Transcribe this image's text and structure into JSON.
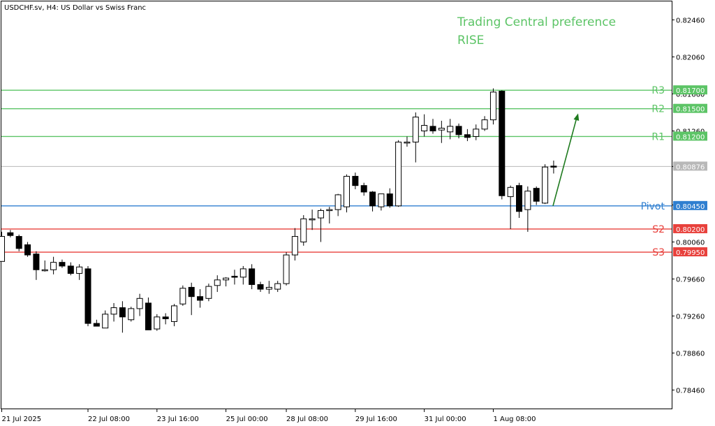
{
  "chart_title": "USDCHF.sv, H4:  US Dollar vs Swiss Franc",
  "preference": {
    "line1": "Trading Central preference",
    "line2": "RISE",
    "color": "#5cc466"
  },
  "colors": {
    "resistance": "#5cc466",
    "support": "#e8413c",
    "pivot": "#2f7fd0",
    "current": "#b8b8b8",
    "arrow": "#1e7a1e",
    "up_candle": "#ffffff",
    "down_candle": "#000000"
  },
  "chart_data": {
    "type": "candlestick",
    "ylim": [
      0.7826,
      0.8266
    ],
    "y_ticks": [
      "0.82460",
      "0.82060",
      "0.81660",
      "0.81260",
      "0.80876",
      "0.80460",
      "0.80060",
      "0.79660",
      "0.79260",
      "0.78860",
      "0.78460"
    ],
    "x_labels": [
      "21 Jul 2025",
      "22 Jul 08:00",
      "23 Jul 16:00",
      "25 Jul 00:00",
      "28 Jul 08:00",
      "29 Jul 16:00",
      "31 Jul 00:00",
      "1 Aug 08:00"
    ],
    "x_label_bars": [
      0,
      10,
      18,
      26,
      33,
      41,
      49,
      57
    ],
    "levels": [
      {
        "name": "R3",
        "value": 0.817,
        "label": "0.81700",
        "kind": "resistance"
      },
      {
        "name": "R2",
        "value": 0.815,
        "label": "0.81500",
        "kind": "resistance"
      },
      {
        "name": "R1",
        "value": 0.812,
        "label": "0.81200",
        "kind": "resistance"
      },
      {
        "name": "Pivot",
        "value": 0.8045,
        "label": "0.80450",
        "kind": "pivot"
      },
      {
        "name": "S2",
        "value": 0.802,
        "label": "0.80200",
        "kind": "support"
      },
      {
        "name": "S3",
        "value": 0.7995,
        "label": "0.79950",
        "kind": "support"
      }
    ],
    "current_price": {
      "value": 0.80876,
      "label": "0.80876"
    },
    "candles": [
      {
        "o": 0.7985,
        "h": 0.8017,
        "l": 0.7985,
        "c": 0.8012
      },
      {
        "o": 0.8016,
        "h": 0.8019,
        "l": 0.8011,
        "c": 0.8013
      },
      {
        "o": 0.8012,
        "h": 0.8014,
        "l": 0.7996,
        "c": 0.7999
      },
      {
        "o": 0.8003,
        "h": 0.8006,
        "l": 0.799,
        "c": 0.7992
      },
      {
        "o": 0.7993,
        "h": 0.7996,
        "l": 0.7965,
        "c": 0.7976
      },
      {
        "o": 0.7976,
        "h": 0.7986,
        "l": 0.7974,
        "c": 0.7976
      },
      {
        "o": 0.7976,
        "h": 0.799,
        "l": 0.7971,
        "c": 0.7984
      },
      {
        "o": 0.7984,
        "h": 0.7987,
        "l": 0.7978,
        "c": 0.798
      },
      {
        "o": 0.798,
        "h": 0.7984,
        "l": 0.797,
        "c": 0.7972
      },
      {
        "o": 0.7972,
        "h": 0.7982,
        "l": 0.7965,
        "c": 0.7979
      },
      {
        "o": 0.7977,
        "h": 0.798,
        "l": 0.7915,
        "c": 0.7918
      },
      {
        "o": 0.7918,
        "h": 0.7922,
        "l": 0.7915,
        "c": 0.7915
      },
      {
        "o": 0.7913,
        "h": 0.7932,
        "l": 0.7913,
        "c": 0.7928
      },
      {
        "o": 0.7928,
        "h": 0.794,
        "l": 0.792,
        "c": 0.7935
      },
      {
        "o": 0.7935,
        "h": 0.7942,
        "l": 0.7908,
        "c": 0.7925
      },
      {
        "o": 0.7922,
        "h": 0.7936,
        "l": 0.792,
        "c": 0.7934
      },
      {
        "o": 0.7934,
        "h": 0.795,
        "l": 0.7926,
        "c": 0.7945
      },
      {
        "o": 0.794,
        "h": 0.7946,
        "l": 0.7911,
        "c": 0.7911
      },
      {
        "o": 0.7912,
        "h": 0.7928,
        "l": 0.791,
        "c": 0.7925
      },
      {
        "o": 0.7925,
        "h": 0.7929,
        "l": 0.7917,
        "c": 0.7923
      },
      {
        "o": 0.792,
        "h": 0.7939,
        "l": 0.7915,
        "c": 0.7937
      },
      {
        "o": 0.7939,
        "h": 0.7959,
        "l": 0.7937,
        "c": 0.7956
      },
      {
        "o": 0.7957,
        "h": 0.7962,
        "l": 0.7927,
        "c": 0.7947
      },
      {
        "o": 0.7947,
        "h": 0.7955,
        "l": 0.7935,
        "c": 0.7943
      },
      {
        "o": 0.7945,
        "h": 0.7961,
        "l": 0.7942,
        "c": 0.7958
      },
      {
        "o": 0.7959,
        "h": 0.797,
        "l": 0.7952,
        "c": 0.7965
      },
      {
        "o": 0.7965,
        "h": 0.7968,
        "l": 0.7958,
        "c": 0.7967
      },
      {
        "o": 0.7969,
        "h": 0.7976,
        "l": 0.796,
        "c": 0.7968
      },
      {
        "o": 0.7968,
        "h": 0.798,
        "l": 0.796,
        "c": 0.7977
      },
      {
        "o": 0.7977,
        "h": 0.7982,
        "l": 0.7955,
        "c": 0.796
      },
      {
        "o": 0.796,
        "h": 0.7963,
        "l": 0.7952,
        "c": 0.7955
      },
      {
        "o": 0.7955,
        "h": 0.7964,
        "l": 0.795,
        "c": 0.7957
      },
      {
        "o": 0.7955,
        "h": 0.7964,
        "l": 0.7952,
        "c": 0.7961
      },
      {
        "o": 0.7961,
        "h": 0.7995,
        "l": 0.7959,
        "c": 0.7992
      },
      {
        "o": 0.7992,
        "h": 0.8021,
        "l": 0.7986,
        "c": 0.8012
      },
      {
        "o": 0.8006,
        "h": 0.8035,
        "l": 0.8002,
        "c": 0.8031
      },
      {
        "o": 0.8031,
        "h": 0.8041,
        "l": 0.8019,
        "c": 0.8031
      },
      {
        "o": 0.8032,
        "h": 0.8042,
        "l": 0.8006,
        "c": 0.804
      },
      {
        "o": 0.804,
        "h": 0.8044,
        "l": 0.8026,
        "c": 0.8041
      },
      {
        "o": 0.8041,
        "h": 0.8058,
        "l": 0.8034,
        "c": 0.8057
      },
      {
        "o": 0.8044,
        "h": 0.8079,
        "l": 0.8038,
        "c": 0.8077
      },
      {
        "o": 0.8077,
        "h": 0.8081,
        "l": 0.8063,
        "c": 0.8067
      },
      {
        "o": 0.8067,
        "h": 0.807,
        "l": 0.8056,
        "c": 0.806
      },
      {
        "o": 0.806,
        "h": 0.8061,
        "l": 0.8039,
        "c": 0.8045
      },
      {
        "o": 0.8044,
        "h": 0.8058,
        "l": 0.804,
        "c": 0.8058
      },
      {
        "o": 0.8058,
        "h": 0.8064,
        "l": 0.8043,
        "c": 0.8045
      },
      {
        "o": 0.8045,
        "h": 0.8116,
        "l": 0.8044,
        "c": 0.8114
      },
      {
        "o": 0.8114,
        "h": 0.812,
        "l": 0.8109,
        "c": 0.8114
      },
      {
        "o": 0.8114,
        "h": 0.8146,
        "l": 0.8092,
        "c": 0.8141
      },
      {
        "o": 0.8126,
        "h": 0.8144,
        "l": 0.812,
        "c": 0.8132
      },
      {
        "o": 0.8131,
        "h": 0.8139,
        "l": 0.8123,
        "c": 0.8126
      },
      {
        "o": 0.8127,
        "h": 0.8137,
        "l": 0.8113,
        "c": 0.8129
      },
      {
        "o": 0.8125,
        "h": 0.8139,
        "l": 0.8117,
        "c": 0.8131
      },
      {
        "o": 0.8131,
        "h": 0.8134,
        "l": 0.8118,
        "c": 0.8122
      },
      {
        "o": 0.8122,
        "h": 0.8128,
        "l": 0.8115,
        "c": 0.8119
      },
      {
        "o": 0.812,
        "h": 0.8133,
        "l": 0.8116,
        "c": 0.8128
      },
      {
        "o": 0.8128,
        "h": 0.8142,
        "l": 0.8126,
        "c": 0.8138
      },
      {
        "o": 0.8138,
        "h": 0.8172,
        "l": 0.8133,
        "c": 0.8168
      },
      {
        "o": 0.8169,
        "h": 0.817,
        "l": 0.8052,
        "c": 0.8056
      },
      {
        "o": 0.8055,
        "h": 0.8067,
        "l": 0.802,
        "c": 0.8065
      },
      {
        "o": 0.8067,
        "h": 0.807,
        "l": 0.8032,
        "c": 0.8039
      },
      {
        "o": 0.8041,
        "h": 0.8066,
        "l": 0.8017,
        "c": 0.8061
      },
      {
        "o": 0.8064,
        "h": 0.8066,
        "l": 0.8046,
        "c": 0.805
      },
      {
        "o": 0.8048,
        "h": 0.809,
        "l": 0.8047,
        "c": 0.8087
      },
      {
        "o": 0.8088,
        "h": 0.8094,
        "l": 0.808,
        "c": 0.8087
      }
    ]
  }
}
